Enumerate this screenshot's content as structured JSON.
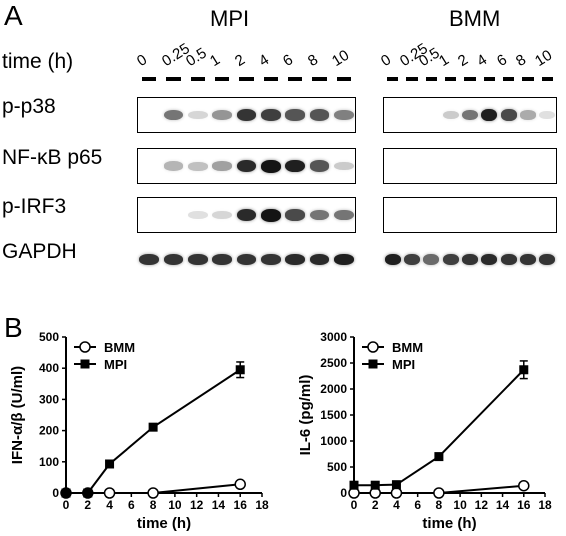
{
  "panelA": {
    "letter": "A",
    "groups": [
      "MPI",
      "BMM"
    ],
    "time_label": "time (h)",
    "timepoints": [
      "0",
      "0.25",
      "0.5",
      "1",
      "2",
      "4",
      "6",
      "8",
      "10"
    ],
    "rows": [
      "p-p38",
      "NF-κB p65",
      "p-IRF3",
      "GAPDH"
    ],
    "band_intensity": {
      "MPI": {
        "p-p38": [
          0.0,
          0.55,
          0.1,
          0.4,
          0.85,
          0.8,
          0.7,
          0.7,
          0.5
        ],
        "NF-κB p65": [
          0.0,
          0.25,
          0.2,
          0.35,
          0.9,
          1.0,
          0.95,
          0.7,
          0.15
        ],
        "p-IRF3": [
          0.0,
          0.0,
          0.05,
          0.1,
          0.9,
          1.0,
          0.75,
          0.55,
          0.55
        ],
        "GAPDH": [
          0.85,
          0.85,
          0.85,
          0.85,
          0.85,
          0.85,
          0.9,
          0.9,
          0.95
        ]
      },
      "BMM": {
        "p-p38": [
          0.0,
          0.0,
          0.0,
          0.15,
          0.55,
          0.95,
          0.75,
          0.3,
          0.05
        ],
        "NF-κB p65": [
          0,
          0,
          0,
          0,
          0,
          0,
          0,
          0,
          0
        ],
        "p-IRF3": [
          0,
          0,
          0,
          0,
          0,
          0,
          0,
          0,
          0
        ],
        "GAPDH": [
          0.95,
          0.8,
          0.6,
          0.8,
          0.85,
          0.9,
          0.85,
          0.85,
          0.85
        ]
      }
    }
  },
  "panelB": {
    "letter": "B"
  },
  "chart_data": [
    {
      "type": "line",
      "xlabel": "time (h)",
      "ylabel": "IFN-α/β (U/ml)",
      "xlim": [
        0,
        18
      ],
      "ylim": [
        0,
        500
      ],
      "xticks": [
        "0",
        "2",
        "4",
        "6",
        "8",
        "10",
        "12",
        "14",
        "16",
        "18"
      ],
      "yticks": [
        "0",
        "100",
        "200",
        "300",
        "400",
        "500"
      ],
      "legend_position": "top-left",
      "series": [
        {
          "name": "BMM",
          "marker": "open-circle",
          "x": [
            0,
            2,
            4,
            8,
            16
          ],
          "y": [
            0,
            0,
            0,
            0,
            28
          ]
        },
        {
          "name": "MPI",
          "marker": "filled-square",
          "x": [
            0,
            2,
            4,
            8,
            16
          ],
          "y": [
            0,
            0,
            93,
            211,
            395
          ],
          "err": [
            0,
            0,
            6,
            6,
            25
          ]
        }
      ]
    },
    {
      "type": "line",
      "xlabel": "time (h)",
      "ylabel": "IL-6 (pg/ml)",
      "xlim": [
        0,
        18
      ],
      "ylim": [
        0,
        3000
      ],
      "xticks": [
        "0",
        "2",
        "4",
        "6",
        "8",
        "10",
        "12",
        "14",
        "16",
        "18"
      ],
      "yticks": [
        "0",
        "500",
        "1000",
        "1500",
        "2000",
        "2500",
        "3000"
      ],
      "legend_position": "top-left",
      "series": [
        {
          "name": "BMM",
          "marker": "open-circle",
          "x": [
            0,
            2,
            4,
            8,
            16
          ],
          "y": [
            0,
            0,
            0,
            0,
            140
          ]
        },
        {
          "name": "MPI",
          "marker": "filled-square",
          "x": [
            0,
            2,
            4,
            8,
            16
          ],
          "y": [
            150,
            150,
            160,
            700,
            2370
          ],
          "err": [
            0,
            0,
            0,
            30,
            170
          ]
        }
      ]
    }
  ]
}
